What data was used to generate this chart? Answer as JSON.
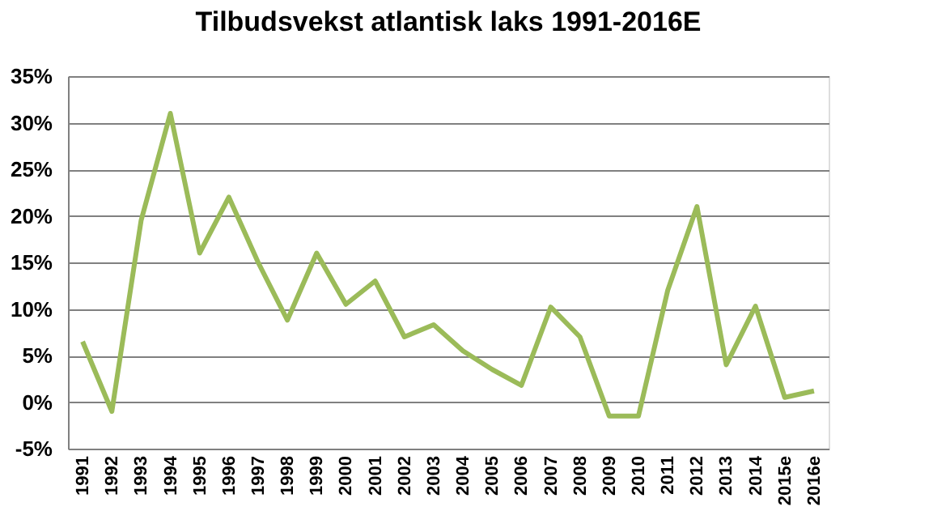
{
  "chart_data": {
    "type": "line",
    "title": "Tilbudsvekst atlantisk laks 1991-2016E",
    "categories": [
      "1991",
      "1992",
      "1993",
      "1994",
      "1995",
      "1996",
      "1997",
      "1998",
      "1999",
      "2000",
      "2001",
      "2002",
      "2003",
      "2004",
      "2005",
      "2006",
      "2007",
      "2008",
      "2009",
      "2010",
      "2011",
      "2012",
      "2013",
      "2014",
      "2015e",
      "2016e"
    ],
    "series": [
      {
        "color": "#9bbb59",
        "values": [
          6.5,
          -1,
          19.5,
          31,
          16,
          22,
          15,
          8.8,
          16,
          10.5,
          13,
          7,
          8.3,
          5.5,
          3.5,
          1.8,
          10.2,
          7,
          -1.5,
          -1.5,
          12,
          21,
          4,
          10.3,
          0.5,
          1.2
        ]
      }
    ],
    "ylim": [
      -5,
      35
    ],
    "yticks": [
      {
        "value": -5,
        "label": "-5%"
      },
      {
        "value": 0,
        "label": "0%"
      },
      {
        "value": 5,
        "label": "5%"
      },
      {
        "value": 10,
        "label": "10%"
      },
      {
        "value": 15,
        "label": "15%"
      },
      {
        "value": 20,
        "label": "20%"
      },
      {
        "value": 25,
        "label": "25%"
      },
      {
        "value": 30,
        "label": "30%"
      },
      {
        "value": 35,
        "label": "35%"
      }
    ],
    "grid": "y",
    "legend": false,
    "marker": "none",
    "line_style": "solid"
  }
}
